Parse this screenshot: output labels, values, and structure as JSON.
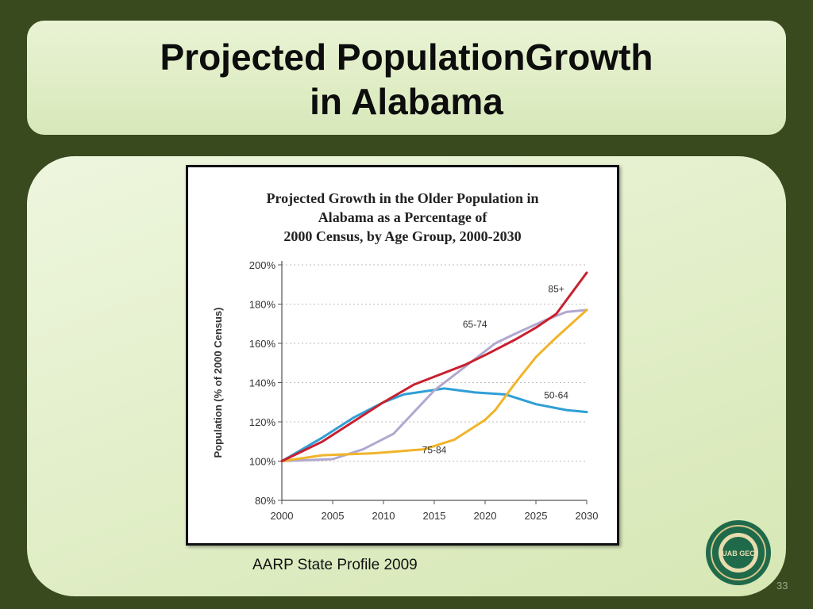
{
  "slide": {
    "title_line1": "Projected PopulationGrowth",
    "title_line2": "in Alabama",
    "source": "AARP State Profile 2009",
    "page_number": "33",
    "seal_text": "UAB GEC"
  },
  "colors": {
    "background": "#3a4a1f",
    "panel": "#e3efca",
    "grid": "#bdbdbd",
    "series_50_64": "#2f9fd6",
    "series_65_74": "#b0a8cf",
    "series_75_84": "#f0b429",
    "series_85_plus": "#c8202f"
  },
  "chart_data": {
    "type": "line",
    "title": "Projected Growth in the Older Population in Alabama as a Percentage of 2000 Census, by Age Group, 2000-2030",
    "title_lines": [
      "Projected Growth in the Older Population in",
      "Alabama as a Percentage of",
      "2000 Census, by Age Group, 2000-2030"
    ],
    "xlabel": "",
    "ylabel": "Population (% of 2000 Census)",
    "xlim": [
      2000,
      2030
    ],
    "ylim": [
      80,
      200
    ],
    "x_ticks": [
      2000,
      2005,
      2010,
      2015,
      2020,
      2025,
      2030
    ],
    "y_ticks": [
      80,
      100,
      120,
      140,
      160,
      180,
      200
    ],
    "y_tick_labels": [
      "80%",
      "100%",
      "120%",
      "140%",
      "160%",
      "180%",
      "200%"
    ],
    "grid": true,
    "series": [
      {
        "name": "50-64",
        "color": "#2f9fd6",
        "x": [
          2000,
          2004,
          2007,
          2010,
          2012,
          2016,
          2019,
          2022,
          2025,
          2028,
          2030
        ],
        "y": [
          100,
          112,
          122,
          130,
          134,
          137,
          135,
          134,
          129,
          126,
          125
        ]
      },
      {
        "name": "65-74",
        "color": "#b0a8cf",
        "x": [
          2000,
          2005,
          2008,
          2011,
          2015,
          2019,
          2021,
          2023,
          2026,
          2028,
          2030
        ],
        "y": [
          100,
          101,
          106,
          114,
          136,
          152,
          160,
          165,
          172,
          176,
          177
        ]
      },
      {
        "name": "75-84",
        "color": "#f0b429",
        "x": [
          2000,
          2004,
          2009,
          2014,
          2017,
          2020,
          2021,
          2023,
          2025,
          2027,
          2030
        ],
        "y": [
          100,
          103,
          104,
          106,
          111,
          121,
          126,
          140,
          153,
          163,
          177
        ]
      },
      {
        "name": "85+",
        "color": "#c8202f",
        "x": [
          2000,
          2004,
          2007,
          2010,
          2013,
          2016,
          2018,
          2020,
          2023,
          2025,
          2027,
          2030
        ],
        "y": [
          100,
          110,
          120,
          130,
          139,
          145,
          149,
          154,
          162,
          168,
          175,
          196
        ]
      }
    ],
    "series_labels": [
      {
        "text": "85+",
        "x": 2027,
        "y": 186
      },
      {
        "text": "65-74",
        "x": 2019,
        "y": 168
      },
      {
        "text": "50-64",
        "x": 2027,
        "y": 132
      },
      {
        "text": "75-84",
        "x": 2015,
        "y": 104
      }
    ]
  }
}
